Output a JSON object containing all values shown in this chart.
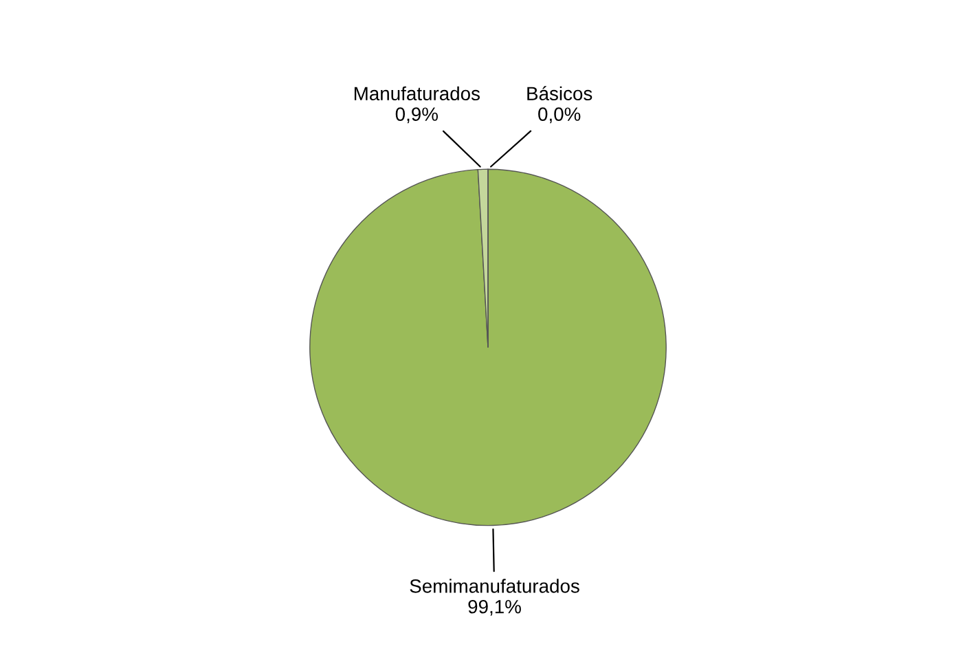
{
  "chart_data": {
    "type": "pie",
    "categories": [
      "Semimanufaturados",
      "Manufaturados",
      "Básicos"
    ],
    "values": [
      99.1,
      0.9,
      0.0
    ],
    "colors": [
      "#9bbb59",
      "#c4d79b",
      "#d7e4bd"
    ],
    "value_labels": [
      "99,1%",
      "0,9%",
      "0,0%"
    ],
    "legend": false
  }
}
